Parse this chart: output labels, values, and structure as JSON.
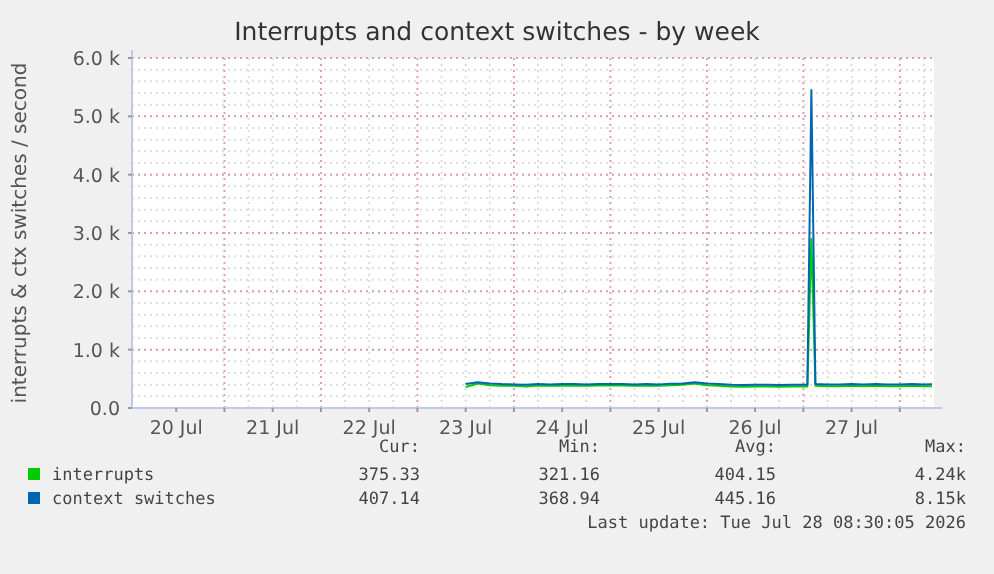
{
  "chart_data": {
    "type": "line",
    "title": "Interrupts and context switches - by week",
    "ylabel": "interrupts & ctx switches / second",
    "x": [
      "2026-07-23T12:00",
      "2026-07-23T15:00",
      "2026-07-23T18:00",
      "2026-07-23T21:00",
      "2026-07-24T00:00",
      "2026-07-24T03:00",
      "2026-07-24T06:00",
      "2026-07-24T09:00",
      "2026-07-24T12:00",
      "2026-07-24T15:00",
      "2026-07-24T18:00",
      "2026-07-24T21:00",
      "2026-07-25T00:00",
      "2026-07-25T03:00",
      "2026-07-25T06:00",
      "2026-07-25T09:00",
      "2026-07-25T12:00",
      "2026-07-25T15:00",
      "2026-07-25T18:00",
      "2026-07-25T21:00",
      "2026-07-26T00:00",
      "2026-07-26T03:00",
      "2026-07-26T06:00",
      "2026-07-26T09:00",
      "2026-07-26T12:00",
      "2026-07-26T15:00",
      "2026-07-26T18:00",
      "2026-07-26T21:00",
      "2026-07-27T00:00",
      "2026-07-27T01:00",
      "2026-07-27T02:00",
      "2026-07-27T03:00",
      "2026-07-27T06:00",
      "2026-07-27T09:00",
      "2026-07-27T12:00",
      "2026-07-27T15:00",
      "2026-07-27T18:00",
      "2026-07-27T21:00",
      "2026-07-28T00:00",
      "2026-07-28T03:00",
      "2026-07-28T06:00",
      "2026-07-28T08:00"
    ],
    "series": [
      {
        "name": "interrupts",
        "color": "#00cc00",
        "values": [
          360,
          420,
          390,
          380,
          380,
          370,
          385,
          380,
          380,
          385,
          380,
          385,
          385,
          385,
          380,
          385,
          380,
          390,
          400,
          420,
          390,
          380,
          370,
          365,
          370,
          370,
          365,
          370,
          370,
          370,
          2900,
          380,
          375,
          375,
          380,
          375,
          380,
          375,
          375,
          380,
          375,
          375
        ]
      },
      {
        "name": "context switches",
        "color": "#0066b3",
        "values": [
          410,
          440,
          420,
          410,
          405,
          400,
          410,
          405,
          410,
          410,
          405,
          410,
          410,
          410,
          405,
          410,
          405,
          415,
          420,
          440,
          420,
          410,
          400,
          395,
          400,
          400,
          395,
          400,
          400,
          400,
          5450,
          410,
          405,
          405,
          410,
          405,
          410,
          405,
          405,
          410,
          405,
          407
        ]
      }
    ],
    "xlim": [
      "2026-07-20T01:00",
      "2026-07-28T08:30"
    ],
    "xticks": [
      {
        "value": "2026-07-20T12:00",
        "label": "20 Jul"
      },
      {
        "value": "2026-07-21T00:00",
        "label": null
      },
      {
        "value": "2026-07-21T12:00",
        "label": "21 Jul"
      },
      {
        "value": "2026-07-22T00:00",
        "label": null
      },
      {
        "value": "2026-07-22T12:00",
        "label": "22 Jul"
      },
      {
        "value": "2026-07-23T00:00",
        "label": null
      },
      {
        "value": "2026-07-23T12:00",
        "label": "23 Jul"
      },
      {
        "value": "2026-07-24T00:00",
        "label": null
      },
      {
        "value": "2026-07-24T12:00",
        "label": "24 Jul"
      },
      {
        "value": "2026-07-25T00:00",
        "label": null
      },
      {
        "value": "2026-07-25T12:00",
        "label": "25 Jul"
      },
      {
        "value": "2026-07-26T00:00",
        "label": null
      },
      {
        "value": "2026-07-26T12:00",
        "label": "26 Jul"
      },
      {
        "value": "2026-07-27T00:00",
        "label": null
      },
      {
        "value": "2026-07-27T12:00",
        "label": "27 Jul"
      },
      {
        "value": "2026-07-28T00:00",
        "label": null
      }
    ],
    "ylim": [
      0,
      6000
    ],
    "yticks": [
      {
        "value": 0,
        "label": "0.0"
      },
      {
        "value": 1000,
        "label": "1.0 k"
      },
      {
        "value": 2000,
        "label": "2.0 k"
      },
      {
        "value": 3000,
        "label": "3.0 k"
      },
      {
        "value": 4000,
        "label": "4.0 k"
      },
      {
        "value": 5000,
        "label": "5.0 k"
      },
      {
        "value": 6000,
        "label": "6.0 k"
      }
    ],
    "grid": true,
    "legend": "bottom",
    "marker": "none",
    "line_style": "solid",
    "annotations": [
      "Cur:",
      "Min:",
      "Avg:",
      "Max:",
      "375.33",
      "321.16",
      "404.15",
      "4.24k",
      "407.14",
      "368.94",
      "445.16",
      "8.15k",
      "Last update: Tue Jul 28 08:30:05 2026"
    ]
  }
}
